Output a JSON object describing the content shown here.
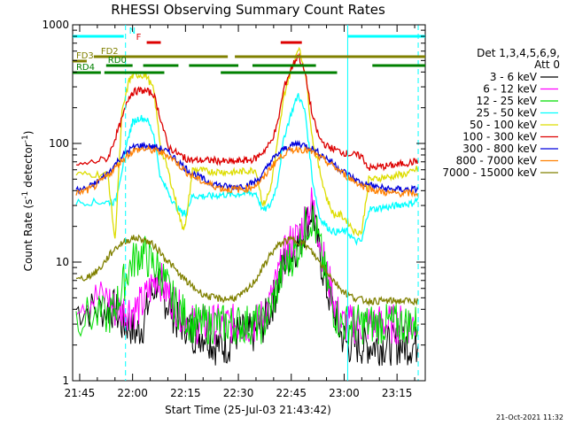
{
  "chart_data": {
    "type": "line",
    "title": "RHESSI Observing Summary Count Rates",
    "xlabel": "Start Time (25-Jul-03 21:43:42)",
    "ylabel_main": "Count Rate (s",
    "ylabel_sup1": "-1",
    "ylabel_mid": " detector",
    "ylabel_sup2": "-1",
    "ylabel_end": ")",
    "xlim": [
      -2,
      98
    ],
    "ylim": [
      1,
      1000
    ],
    "yscale": "log",
    "x_ticks": [
      {
        "value": 0,
        "label": "21:45"
      },
      {
        "value": 15,
        "label": "22:00"
      },
      {
        "value": 30,
        "label": "22:15"
      },
      {
        "value": 45,
        "label": "22:30"
      },
      {
        "value": 60,
        "label": "22:45"
      },
      {
        "value": 75,
        "label": "23:00"
      },
      {
        "value": 90,
        "label": "23:15"
      }
    ],
    "y_ticks": [
      {
        "value": 1,
        "label": "1"
      },
      {
        "value": 10,
        "label": "10"
      },
      {
        "value": 100,
        "label": "100"
      },
      {
        "value": 1000,
        "label": "1000"
      }
    ],
    "legend_header": [
      "Det 1,3,4,5,6,9,",
      "Att 0"
    ],
    "series": [
      {
        "name": "3 - 6 keV",
        "color": "#000000",
        "x": [
          -1,
          4,
          8,
          10,
          12,
          14,
          16,
          18,
          20,
          22,
          24,
          26,
          28,
          30,
          32,
          34,
          36,
          38,
          40,
          42,
          44,
          46,
          48,
          50,
          52,
          54,
          56,
          58,
          60,
          62,
          64,
          66,
          68,
          70,
          72,
          74,
          76,
          78,
          80,
          82,
          84,
          86,
          88,
          90,
          92,
          94,
          96
        ],
        "y": [
          4,
          4,
          4,
          4,
          3,
          3,
          2.5,
          3,
          5,
          7,
          5,
          4,
          3,
          3,
          2.5,
          2.5,
          2.5,
          2,
          2,
          2,
          2.5,
          2.5,
          2.5,
          2.5,
          3,
          4,
          6,
          10,
          12,
          14,
          20,
          28,
          12,
          6,
          4,
          2.5,
          2,
          2,
          2,
          2,
          2,
          2,
          2,
          2,
          2,
          2,
          2
        ]
      },
      {
        "name": "6 - 12 keV",
        "color": "#ff00ff",
        "x": [
          -1,
          4,
          8,
          10,
          12,
          14,
          16,
          18,
          20,
          22,
          24,
          26,
          28,
          30,
          32,
          34,
          36,
          38,
          40,
          42,
          44,
          46,
          48,
          50,
          52,
          54,
          56,
          58,
          60,
          62,
          64,
          66,
          68,
          70,
          72,
          74,
          76,
          78,
          80,
          82,
          84,
          86,
          88,
          90,
          92,
          94,
          96
        ],
        "y": [
          5,
          5,
          5,
          4,
          4,
          4,
          4,
          4.5,
          6,
          8,
          6,
          5,
          4,
          3.5,
          3,
          3,
          3,
          3,
          3,
          3,
          3,
          3,
          3,
          3,
          3.5,
          4.5,
          7,
          11,
          15,
          16,
          24,
          32,
          16,
          8,
          5,
          3,
          3,
          3,
          3,
          3,
          3,
          3,
          3,
          3,
          3,
          3,
          3
        ]
      },
      {
        "name": "12 - 25 keV",
        "color": "#00dd00",
        "x": [
          -1,
          4,
          8,
          10,
          12,
          14,
          16,
          18,
          20,
          22,
          24,
          26,
          28,
          30,
          32,
          34,
          36,
          38,
          40,
          42,
          44,
          46,
          48,
          50,
          52,
          54,
          56,
          58,
          60,
          62,
          64,
          66,
          68,
          70,
          72,
          74,
          76,
          78,
          80,
          82,
          84,
          86,
          88,
          90,
          92,
          94,
          96
        ],
        "y": [
          3.5,
          3.5,
          3.5,
          4,
          6,
          9,
          11,
          12,
          10,
          9,
          7,
          5,
          4,
          3.5,
          3,
          3,
          3,
          3,
          3,
          3,
          3,
          3,
          3,
          3,
          3,
          4,
          6,
          9,
          11,
          13,
          20,
          24,
          14,
          7,
          4,
          3,
          3,
          3,
          3,
          3,
          3,
          3,
          3,
          3,
          3,
          3,
          3
        ]
      },
      {
        "name": "25 - 50 keV",
        "color": "#00ffff",
        "x": [
          -1,
          4,
          8,
          10,
          12,
          14,
          15,
          17,
          19,
          21,
          23,
          25,
          27,
          29,
          30,
          32,
          34,
          36,
          38,
          40,
          42,
          44,
          46,
          48,
          50,
          52,
          54,
          56,
          58,
          60,
          62,
          64,
          66,
          68,
          70,
          72,
          74,
          76,
          78,
          80,
          82,
          84,
          86,
          88,
          90,
          92,
          94,
          96
        ],
        "y": [
          32,
          32,
          32,
          32,
          60,
          120,
          150,
          165,
          160,
          120,
          50,
          40,
          30,
          26,
          26,
          36,
          36,
          36,
          36,
          37,
          37,
          37,
          38,
          38,
          38,
          27,
          30,
          45,
          115,
          180,
          260,
          180,
          50,
          24,
          20,
          18,
          18,
          18,
          15,
          15,
          28,
          28,
          29,
          29,
          30,
          31,
          31,
          34
        ]
      },
      {
        "name": "50 - 100 keV",
        "color": "#dddd00",
        "x": [
          -1,
          4,
          8,
          10,
          12,
          14,
          15,
          17,
          19,
          21,
          23,
          25,
          27,
          29,
          30,
          32,
          34,
          36,
          38,
          40,
          42,
          44,
          46,
          48,
          50,
          52,
          54,
          56,
          58,
          60,
          62,
          64,
          66,
          68,
          70,
          72,
          74,
          76,
          78,
          80,
          82,
          84,
          86,
          88,
          90,
          92,
          94,
          96
        ],
        "y": [
          55,
          55,
          55,
          15,
          180,
          340,
          370,
          380,
          370,
          280,
          90,
          60,
          35,
          20,
          20,
          60,
          60,
          58,
          58,
          58,
          57,
          57,
          58,
          59,
          60,
          30,
          40,
          95,
          260,
          420,
          650,
          400,
          110,
          60,
          35,
          25,
          25,
          22,
          18,
          18,
          50,
          50,
          52,
          52,
          54,
          55,
          57,
          62
        ]
      },
      {
        "name": "100 - 300 keV",
        "color": "#dd0000",
        "x": [
          -1,
          4,
          8,
          10,
          12,
          14,
          15,
          17,
          19,
          21,
          23,
          25,
          27,
          29,
          30,
          32,
          34,
          36,
          38,
          40,
          42,
          44,
          46,
          48,
          50,
          52,
          54,
          56,
          58,
          60,
          62,
          64,
          66,
          68,
          70,
          72,
          74,
          76,
          78,
          80,
          82,
          84,
          86,
          88,
          90,
          92,
          94,
          96
        ],
        "y": [
          65,
          70,
          75,
          110,
          160,
          250,
          270,
          280,
          275,
          260,
          160,
          95,
          85,
          78,
          75,
          72,
          72,
          72,
          72,
          71,
          70,
          70,
          72,
          72,
          75,
          85,
          100,
          140,
          300,
          430,
          560,
          380,
          170,
          110,
          95,
          90,
          85,
          82,
          80,
          78,
          62,
          63,
          64,
          65,
          66,
          68,
          69,
          72
        ]
      },
      {
        "name": "300 - 800 keV",
        "color": "#0000dd",
        "x": [
          -1,
          2,
          4,
          6,
          8,
          10,
          12,
          14,
          16,
          18,
          20,
          22,
          24,
          26,
          28,
          30,
          32,
          34,
          36,
          38,
          40,
          42,
          44,
          46,
          48,
          50,
          52,
          54,
          56,
          58,
          60,
          62,
          64,
          66,
          68,
          70,
          72,
          74,
          76,
          78,
          80,
          82,
          84,
          86,
          88,
          90,
          92,
          94,
          96
        ],
        "y": [
          40,
          42,
          45,
          50,
          56,
          66,
          78,
          88,
          95,
          96,
          94,
          92,
          88,
          80,
          70,
          62,
          56,
          52,
          48,
          46,
          44,
          43,
          43,
          44,
          45,
          48,
          55,
          70,
          80,
          90,
          96,
          100,
          96,
          90,
          82,
          75,
          68,
          60,
          55,
          50,
          46,
          45,
          43,
          42,
          41,
          41,
          41,
          41,
          41
        ]
      },
      {
        "name": "800 - 7000 keV",
        "color": "#ff8000",
        "x": [
          -1,
          2,
          4,
          6,
          8,
          10,
          12,
          14,
          16,
          18,
          20,
          22,
          24,
          26,
          28,
          30,
          32,
          34,
          36,
          38,
          40,
          42,
          44,
          46,
          48,
          50,
          52,
          54,
          56,
          58,
          60,
          62,
          64,
          66,
          68,
          70,
          72,
          74,
          76,
          78,
          80,
          82,
          84,
          86,
          88,
          90,
          92,
          94,
          96
        ],
        "y": [
          38,
          40,
          43,
          48,
          54,
          62,
          72,
          82,
          88,
          90,
          88,
          86,
          82,
          76,
          67,
          58,
          53,
          49,
          46,
          44,
          42,
          41,
          41,
          41,
          42,
          45,
          50,
          62,
          72,
          82,
          88,
          90,
          88,
          84,
          76,
          70,
          64,
          58,
          52,
          48,
          44,
          42,
          40,
          39,
          38,
          38,
          38,
          38,
          38
        ]
      },
      {
        "name": "7000 - 15000 keV",
        "color": "#808000",
        "x": [
          -1,
          2,
          4,
          6,
          8,
          10,
          12,
          14,
          16,
          18,
          20,
          22,
          24,
          26,
          28,
          30,
          32,
          34,
          36,
          38,
          40,
          42,
          44,
          46,
          48,
          50,
          52,
          54,
          56,
          58,
          60,
          62,
          64,
          66,
          68,
          70,
          72,
          74,
          76,
          78,
          80,
          82,
          84,
          86,
          88,
          90,
          92,
          94,
          96
        ],
        "y": [
          7,
          7.5,
          8,
          9,
          11,
          13,
          14.5,
          15.5,
          16,
          15.5,
          14.5,
          13,
          11,
          9.5,
          8,
          7,
          6.2,
          5.6,
          5.2,
          5,
          4.9,
          4.9,
          5,
          5.3,
          6,
          7.2,
          9,
          11.5,
          13.5,
          15,
          15.5,
          15,
          14,
          12,
          10,
          8.5,
          7,
          6,
          5.3,
          5,
          4.8,
          4.7,
          4.7,
          4.7,
          4.7,
          4.7,
          4.7,
          4.7,
          4.7
        ]
      }
    ],
    "state_bars": [
      {
        "name": "N",
        "color": "#00ffff",
        "segments": [
          [
            -2,
            12.5
          ],
          [
            76,
            98
          ]
        ],
        "label_x": 14
      },
      {
        "name": "F",
        "color": "#dd0000",
        "segments": [
          [
            19,
            23
          ],
          [
            57,
            63
          ]
        ],
        "label_x": 16
      },
      {
        "name": "FD2",
        "color": "#808000",
        "segments": [
          [
            4,
            42
          ],
          [
            44,
            98
          ]
        ],
        "label_x": 6
      },
      {
        "name": "FD3",
        "color": "#808000",
        "segments": [
          [
            -2,
            2
          ]
        ],
        "label_x": -1
      },
      {
        "name": "RD0",
        "color": "#008000",
        "segments": [
          [
            7.5,
            15
          ],
          [
            18,
            28
          ],
          [
            31,
            45
          ],
          [
            49,
            67
          ],
          [
            83,
            98
          ]
        ],
        "label_x": 8
      },
      {
        "name": "RD4",
        "color": "#008000",
        "segments": [
          [
            -2,
            6
          ],
          [
            7,
            24
          ],
          [
            40,
            73
          ]
        ],
        "label_x": -1
      }
    ],
    "dashed_lines": [
      {
        "x": 13,
        "color": "#00ffff"
      },
      {
        "x": 96,
        "color": "#00ffff"
      }
    ],
    "solid_lines": [
      {
        "x": 76,
        "color": "#00ffff"
      }
    ],
    "footer_date": "21-Oct-2021 11:32"
  }
}
